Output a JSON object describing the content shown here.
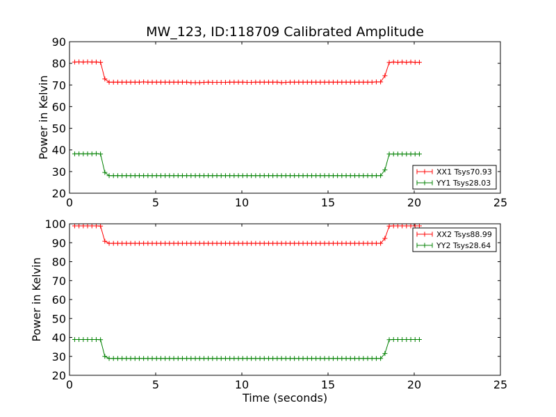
{
  "chart_data": {
    "type": "line",
    "title": "MW_123, ID:118709 Calibrated Amplitude",
    "panels": [
      {
        "xlabel": "",
        "ylabel": "Power in Kelvin",
        "xlim": [
          0,
          25
        ],
        "ylim": [
          20,
          90
        ],
        "xticks": [
          0,
          5,
          10,
          15,
          20,
          25
        ],
        "yticks": [
          20,
          30,
          40,
          50,
          60,
          70,
          80,
          90
        ],
        "legend_position": "lower-right",
        "series": [
          {
            "name": "XX1 Tsys70.93",
            "color": "#ff0000",
            "marker": "plus",
            "x": [
              0.3,
              0.55,
              0.8,
              1.05,
              1.3,
              1.55,
              1.8,
              2.05,
              2.3,
              2.55,
              2.8,
              3.05,
              3.3,
              3.55,
              3.8,
              4.05,
              4.3,
              4.55,
              4.8,
              5.05,
              5.3,
              5.55,
              5.8,
              6.05,
              6.3,
              6.55,
              6.8,
              7.05,
              7.3,
              7.55,
              7.8,
              8.05,
              8.3,
              8.55,
              8.8,
              9.05,
              9.3,
              9.55,
              9.8,
              10.05,
              10.3,
              10.55,
              10.8,
              11.05,
              11.3,
              11.55,
              11.8,
              12.05,
              12.3,
              12.55,
              12.8,
              13.05,
              13.3,
              13.55,
              13.8,
              14.05,
              14.3,
              14.55,
              14.8,
              15.05,
              15.3,
              15.55,
              15.8,
              16.05,
              16.3,
              16.55,
              16.8,
              17.05,
              17.3,
              17.55,
              17.8,
              18.05,
              18.3,
              18.55,
              18.8,
              19.05,
              19.3,
              19.55,
              19.8,
              20.05,
              20.3
            ],
            "y": [
              80.6,
              80.7,
              80.6,
              80.7,
              80.6,
              80.6,
              80.5,
              72.8,
              71.3,
              71.3,
              71.3,
              71.3,
              71.3,
              71.3,
              71.3,
              71.3,
              71.4,
              71.3,
              71.3,
              71.3,
              71.3,
              71.3,
              71.3,
              71.3,
              71.3,
              71.3,
              71.3,
              71.1,
              71.1,
              71.1,
              71.2,
              71.3,
              71.2,
              71.2,
              71.2,
              71.2,
              71.3,
              71.3,
              71.3,
              71.3,
              71.2,
              71.2,
              71.3,
              71.3,
              71.3,
              71.3,
              71.3,
              71.3,
              71.1,
              71.2,
              71.3,
              71.3,
              71.3,
              71.3,
              71.3,
              71.3,
              71.3,
              71.3,
              71.3,
              71.3,
              71.3,
              71.3,
              71.3,
              71.3,
              71.3,
              71.3,
              71.3,
              71.3,
              71.3,
              71.3,
              71.4,
              71.4,
              74.3,
              80.4,
              80.6,
              80.5,
              80.6,
              80.5,
              80.6,
              80.5,
              80.5
            ]
          },
          {
            "name": "YY1 Tsys28.03",
            "color": "#008000",
            "marker": "plus",
            "x": [
              0.3,
              0.55,
              0.8,
              1.05,
              1.3,
              1.55,
              1.8,
              2.05,
              2.3,
              2.55,
              2.8,
              3.05,
              3.3,
              3.55,
              3.8,
              4.05,
              4.3,
              4.55,
              4.8,
              5.05,
              5.3,
              5.55,
              5.8,
              6.05,
              6.3,
              6.55,
              6.8,
              7.05,
              7.3,
              7.55,
              7.8,
              8.05,
              8.3,
              8.55,
              8.8,
              9.05,
              9.3,
              9.55,
              9.8,
              10.05,
              10.3,
              10.55,
              10.8,
              11.05,
              11.3,
              11.55,
              11.8,
              12.05,
              12.3,
              12.55,
              12.8,
              13.05,
              13.3,
              13.55,
              13.8,
              14.05,
              14.3,
              14.55,
              14.8,
              15.05,
              15.3,
              15.55,
              15.8,
              16.05,
              16.3,
              16.55,
              16.8,
              17.05,
              17.3,
              17.55,
              17.8,
              18.05,
              18.3,
              18.55,
              18.8,
              19.05,
              19.3,
              19.55,
              19.8,
              20.05,
              20.3
            ],
            "y": [
              38.2,
              38.2,
              38.2,
              38.2,
              38.2,
              38.3,
              38.1,
              29.6,
              28.1,
              28.1,
              28.1,
              28.1,
              28.1,
              28.1,
              28.1,
              28.1,
              28.1,
              28.1,
              28.1,
              28.1,
              28.1,
              28.1,
              28.1,
              28.1,
              28.1,
              28.1,
              28.1,
              28.1,
              28.1,
              28.1,
              28.1,
              28.1,
              28.1,
              28.1,
              28.1,
              28.1,
              28.1,
              28.1,
              28.1,
              28.1,
              28.1,
              28.1,
              28.1,
              28.1,
              28.1,
              28.1,
              28.1,
              28.1,
              28.1,
              28.1,
              28.1,
              28.1,
              28.1,
              28.1,
              28.1,
              28.1,
              28.1,
              28.1,
              28.1,
              28.1,
              28.1,
              28.1,
              28.1,
              28.1,
              28.1,
              28.1,
              28.1,
              28.1,
              28.1,
              28.1,
              28.1,
              28.1,
              30.8,
              38.1,
              38.1,
              38.1,
              38.1,
              38.1,
              38.1,
              38.1,
              38.1
            ]
          }
        ]
      },
      {
        "xlabel": "Time (seconds)",
        "ylabel": "Power in Kelvin",
        "xlim": [
          0,
          25
        ],
        "ylim": [
          20,
          100
        ],
        "xticks": [
          0,
          5,
          10,
          15,
          20,
          25
        ],
        "yticks": [
          20,
          30,
          40,
          50,
          60,
          70,
          80,
          90,
          100
        ],
        "legend_position": "upper-right",
        "series": [
          {
            "name": "XX2 Tsys88.99",
            "color": "#ff0000",
            "marker": "plus",
            "x": [
              0.3,
              0.55,
              0.8,
              1.05,
              1.3,
              1.55,
              1.8,
              2.05,
              2.3,
              2.55,
              2.8,
              3.05,
              3.3,
              3.55,
              3.8,
              4.05,
              4.3,
              4.55,
              4.8,
              5.05,
              5.3,
              5.55,
              5.8,
              6.05,
              6.3,
              6.55,
              6.8,
              7.05,
              7.3,
              7.55,
              7.8,
              8.05,
              8.3,
              8.55,
              8.8,
              9.05,
              9.3,
              9.55,
              9.8,
              10.05,
              10.3,
              10.55,
              10.8,
              11.05,
              11.3,
              11.55,
              11.8,
              12.05,
              12.3,
              12.55,
              12.8,
              13.05,
              13.3,
              13.55,
              13.8,
              14.05,
              14.3,
              14.55,
              14.8,
              15.05,
              15.3,
              15.55,
              15.8,
              16.05,
              16.3,
              16.55,
              16.8,
              17.05,
              17.3,
              17.55,
              17.8,
              18.05,
              18.3,
              18.55,
              18.8,
              19.05,
              19.3,
              19.55,
              19.8,
              20.05,
              20.3
            ],
            "y": [
              98.9,
              98.9,
              98.9,
              98.9,
              98.9,
              98.9,
              98.8,
              90.8,
              89.7,
              89.7,
              89.7,
              89.7,
              89.7,
              89.7,
              89.7,
              89.7,
              89.7,
              89.7,
              89.7,
              89.7,
              89.7,
              89.7,
              89.7,
              89.7,
              89.7,
              89.7,
              89.7,
              89.7,
              89.7,
              89.7,
              89.7,
              89.7,
              89.7,
              89.7,
              89.7,
              89.7,
              89.7,
              89.7,
              89.7,
              89.7,
              89.7,
              89.7,
              89.7,
              89.7,
              89.7,
              89.7,
              89.7,
              89.7,
              89.7,
              89.7,
              89.7,
              89.7,
              89.7,
              89.7,
              89.7,
              89.7,
              89.7,
              89.7,
              89.7,
              89.7,
              89.7,
              89.7,
              89.7,
              89.7,
              89.7,
              89.7,
              89.7,
              89.7,
              89.7,
              89.7,
              89.7,
              89.7,
              92.3,
              98.8,
              98.9,
              98.9,
              98.9,
              98.9,
              98.9,
              98.9,
              98.9
            ]
          },
          {
            "name": "YY2 Tsys28.64",
            "color": "#008000",
            "marker": "plus",
            "x": [
              0.3,
              0.55,
              0.8,
              1.05,
              1.3,
              1.55,
              1.8,
              2.05,
              2.3,
              2.55,
              2.8,
              3.05,
              3.3,
              3.55,
              3.8,
              4.05,
              4.3,
              4.55,
              4.8,
              5.05,
              5.3,
              5.55,
              5.8,
              6.05,
              6.3,
              6.55,
              6.8,
              7.05,
              7.3,
              7.55,
              7.8,
              8.05,
              8.3,
              8.55,
              8.8,
              9.05,
              9.3,
              9.55,
              9.8,
              10.05,
              10.3,
              10.55,
              10.8,
              11.05,
              11.3,
              11.55,
              11.8,
              12.05,
              12.3,
              12.55,
              12.8,
              13.05,
              13.3,
              13.55,
              13.8,
              14.05,
              14.3,
              14.55,
              14.8,
              15.05,
              15.3,
              15.55,
              15.8,
              16.05,
              16.3,
              16.55,
              16.8,
              17.05,
              17.3,
              17.55,
              17.8,
              18.05,
              18.3,
              18.55,
              18.8,
              19.05,
              19.3,
              19.55,
              19.8,
              20.05,
              20.3
            ],
            "y": [
              38.9,
              38.9,
              38.9,
              38.9,
              38.9,
              38.9,
              38.8,
              30.0,
              28.9,
              28.9,
              28.9,
              28.9,
              28.9,
              28.9,
              28.9,
              28.9,
              28.9,
              28.9,
              28.9,
              28.9,
              28.9,
              28.9,
              28.9,
              28.9,
              28.9,
              28.9,
              28.9,
              28.9,
              28.9,
              28.9,
              28.9,
              28.9,
              28.9,
              28.9,
              28.9,
              28.9,
              28.9,
              28.9,
              28.9,
              28.9,
              28.9,
              28.9,
              28.9,
              28.9,
              28.9,
              28.9,
              28.9,
              28.9,
              28.9,
              28.9,
              28.9,
              28.9,
              28.9,
              28.9,
              28.9,
              28.9,
              28.9,
              28.9,
              28.9,
              28.9,
              28.9,
              28.9,
              28.9,
              28.9,
              28.9,
              28.9,
              28.9,
              28.9,
              28.9,
              28.9,
              28.9,
              28.9,
              31.5,
              38.8,
              38.9,
              38.9,
              38.9,
              38.9,
              38.9,
              38.9,
              38.9
            ]
          }
        ]
      }
    ]
  }
}
